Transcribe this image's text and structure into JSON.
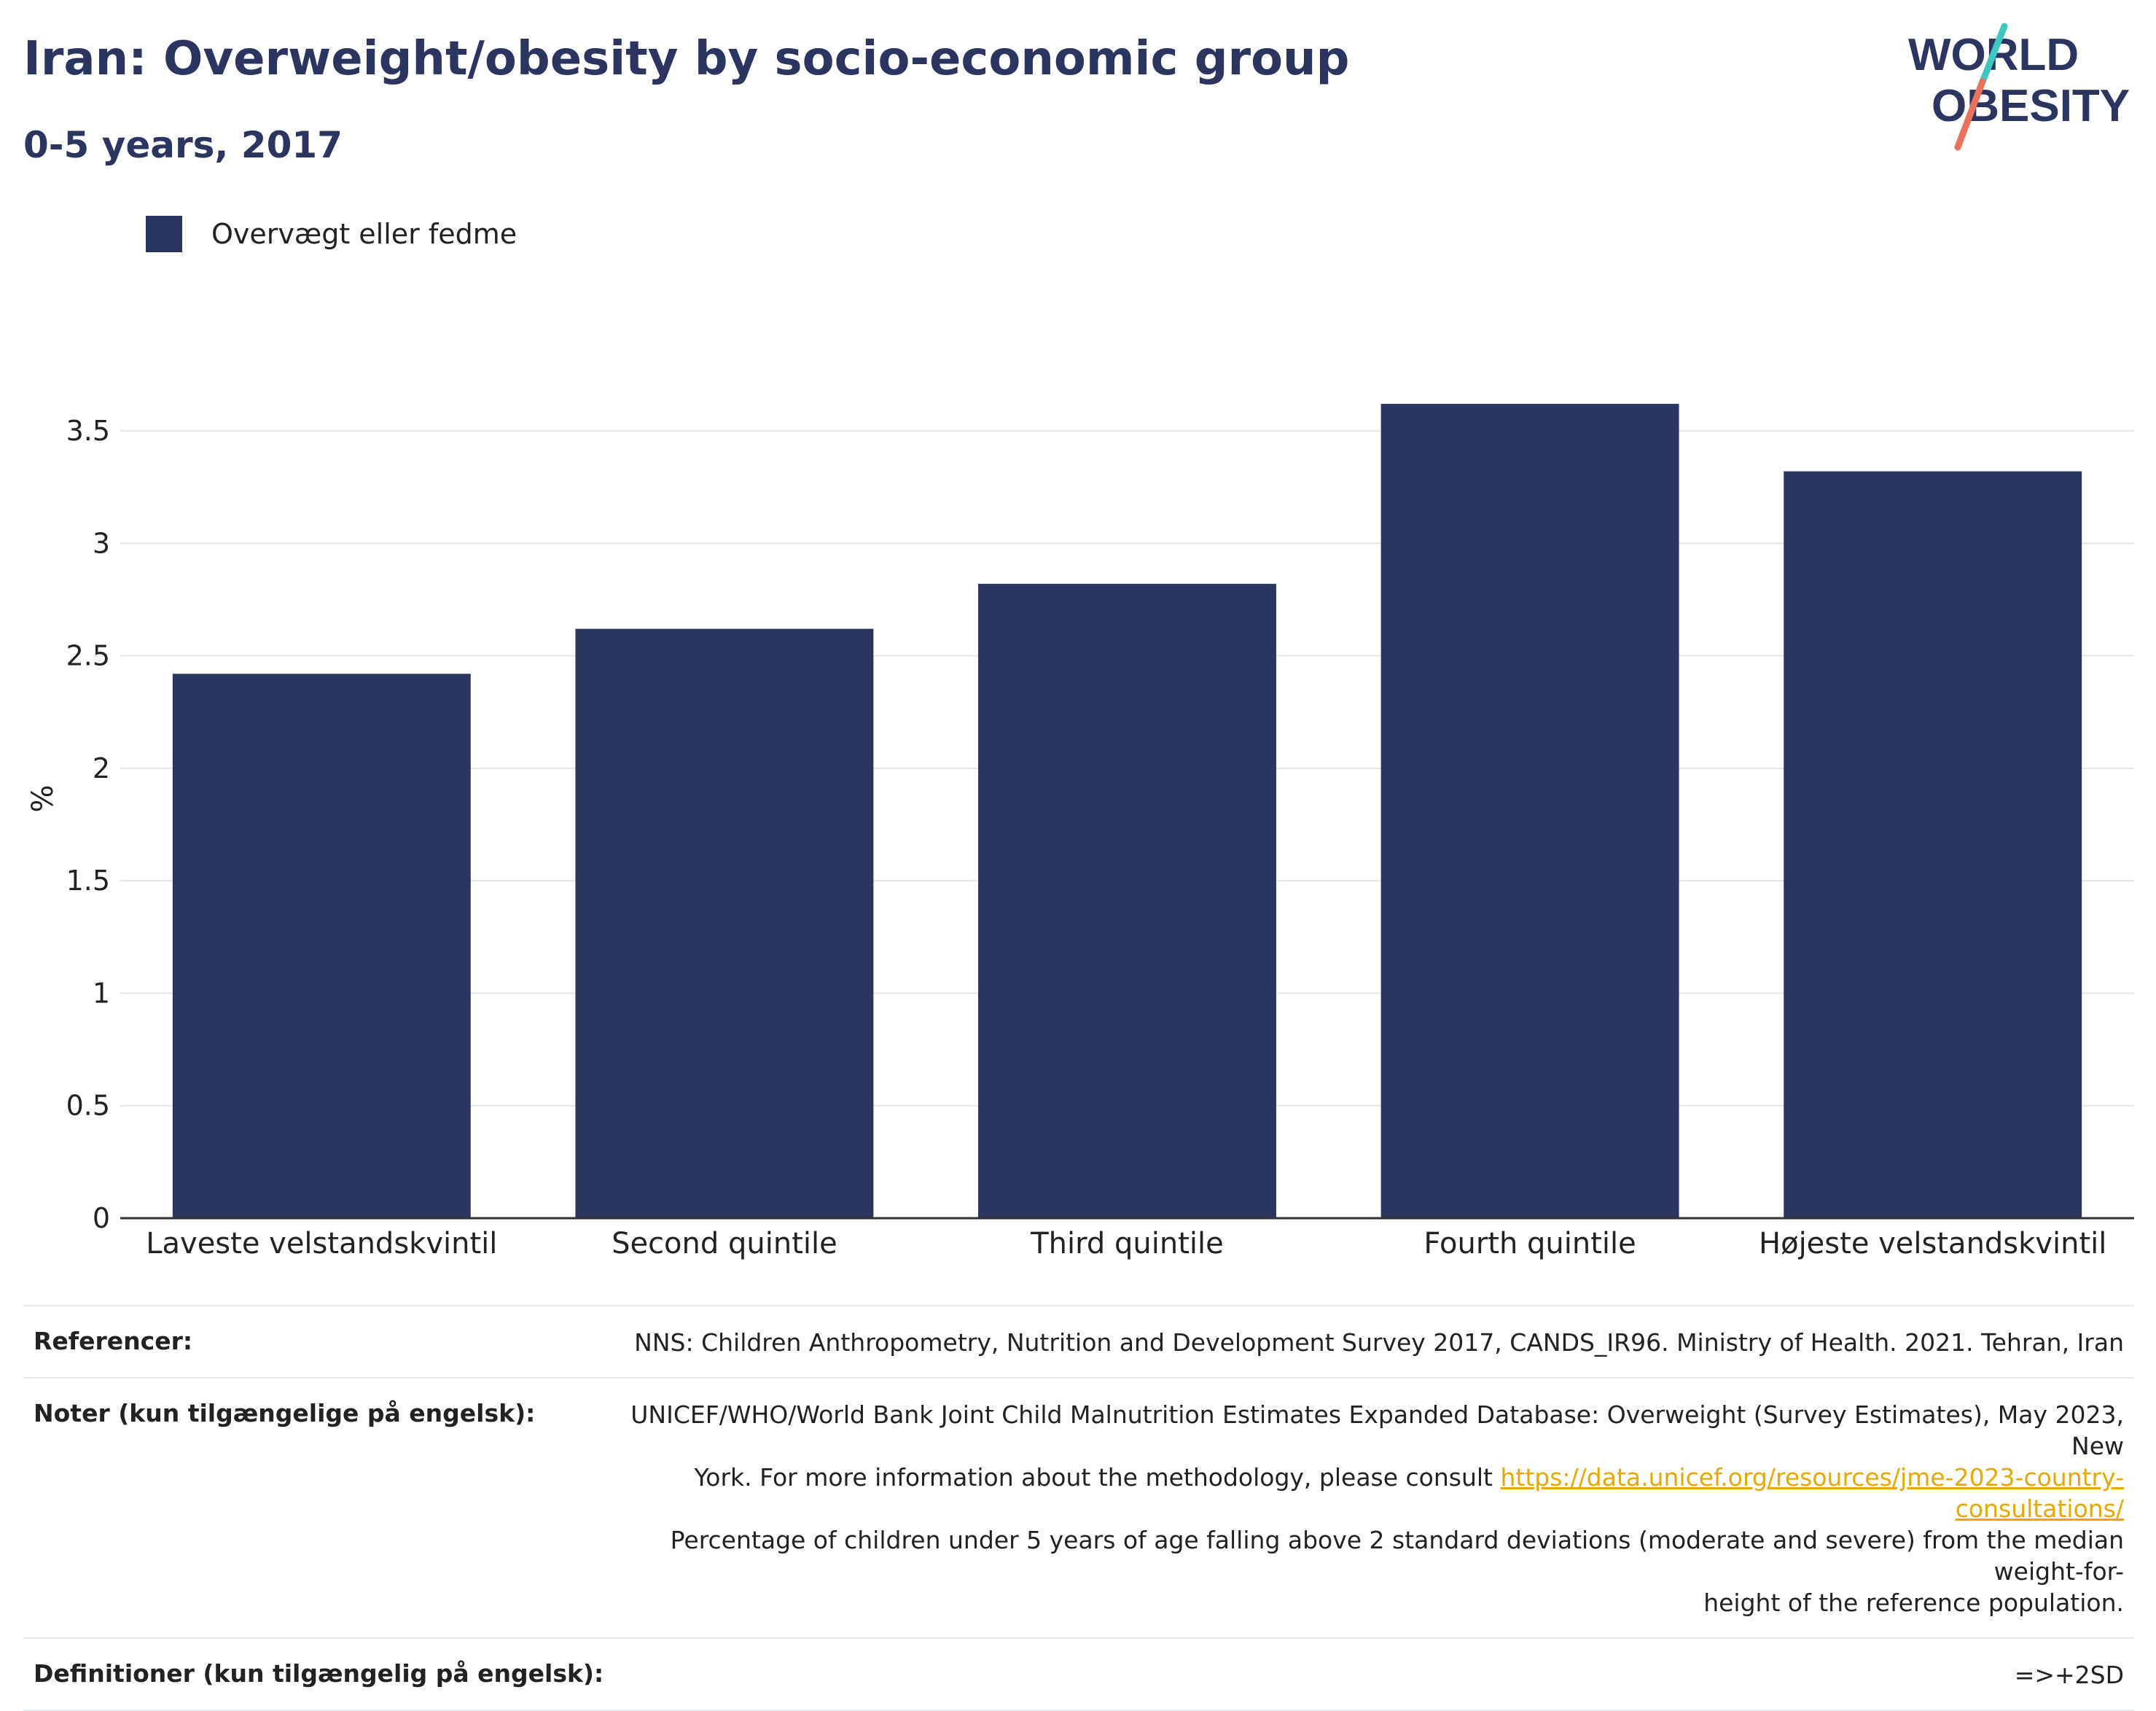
{
  "header": {
    "title": "Iran: Overweight/obesity by socio-economic group",
    "subtitle": "0-5 years, 2017"
  },
  "logo": {
    "line1": "WORLD",
    "line2": "OBESITY",
    "slash_colors": [
      "#3ec7c1",
      "#e8735a"
    ],
    "text_color": "#2b3660"
  },
  "chart_data": {
    "type": "bar",
    "categories": [
      "Laveste velstandskvintil",
      "Second quintile",
      "Third quintile",
      "Fourth quintile",
      "Højeste velstandskvintil"
    ],
    "series": [
      {
        "name": "Overvægt eller fedme",
        "values": [
          2.42,
          2.62,
          2.82,
          3.62,
          3.32
        ],
        "color": "#2b3660"
      }
    ],
    "ylabel": "%",
    "xlabel": "",
    "ylim": [
      0,
      3.73
    ],
    "yticks": [
      0,
      0.5,
      1,
      1.5,
      2,
      2.5,
      3,
      3.5
    ],
    "ytick_labels": [
      "0",
      "0.5",
      "1",
      "1.5",
      "2",
      "2.5",
      "3",
      "3.5"
    ],
    "grid": true,
    "legend_position": "top-left"
  },
  "meta": {
    "references_label": "Referencer:",
    "references_value": "NNS: Children Anthropometry, Nutrition and Development Survey 2017, CANDS_IR96. Ministry of Health. 2021. Tehran, Iran",
    "notes_label": "Noter (kun tilgængelige på engelsk):",
    "notes_line1": "UNICEF/WHO/World Bank Joint Child Malnutrition Estimates Expanded Database: Overweight (Survey Estimates), May 2023, New",
    "notes_line2_prefix": "York. For more information about the methodology, please consult",
    "notes_link": "https://data.unicef.org/resources/jme-2023-country-consultations/",
    "notes_line3": "Percentage of children under 5 years of age falling above 2 standard deviations (moderate and severe) from the median weight-for-",
    "notes_line4": "height of the reference population.",
    "definitions_label": "Definitioner (kun tilgængelig på engelsk):",
    "definitions_value": "=>+2SD"
  }
}
